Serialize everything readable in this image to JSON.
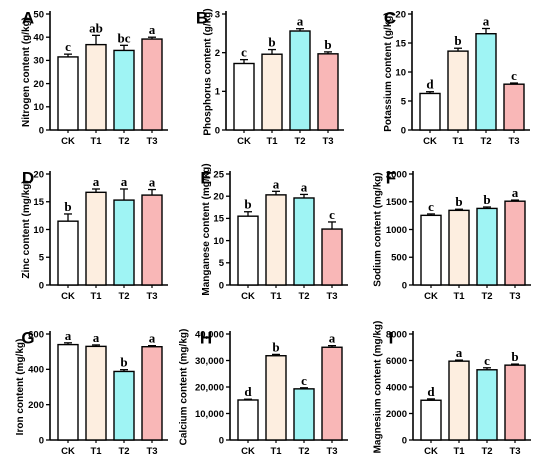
{
  "chart_data": [
    {
      "type": "bar",
      "panel": "A",
      "ylabel": "Nitrogen content (g/kg)",
      "categories": [
        "CK",
        "T1",
        "T2",
        "T3"
      ],
      "values": [
        31.5,
        36.8,
        34.3,
        39.2
      ],
      "errors": [
        1.2,
        4.0,
        2.2,
        0.8
      ],
      "significance": [
        "c",
        "ab",
        "bc",
        "a"
      ],
      "ylim": [
        0,
        50
      ],
      "yticks": [
        0,
        10,
        20,
        30,
        40,
        50
      ],
      "ytick_labels": [
        "0",
        "10",
        "20",
        "30",
        "40",
        "50"
      ]
    },
    {
      "type": "bar",
      "panel": "B",
      "ylabel": "Phosphorus content (g/kg)",
      "categories": [
        "CK",
        "T1",
        "T2",
        "T3"
      ],
      "values": [
        1.72,
        1.96,
        2.56,
        1.97
      ],
      "errors": [
        0.1,
        0.12,
        0.06,
        0.05
      ],
      "significance": [
        "c",
        "b",
        "a",
        "b"
      ],
      "ylim": [
        0,
        3
      ],
      "yticks": [
        0,
        1,
        2,
        3
      ],
      "ytick_labels": [
        "0",
        "1",
        "2",
        "3"
      ]
    },
    {
      "type": "bar",
      "panel": "C",
      "ylabel": "Potassium content (g/kg)",
      "categories": [
        "CK",
        "T1",
        "T2",
        "T3"
      ],
      "values": [
        6.3,
        13.6,
        16.6,
        7.9
      ],
      "errors": [
        0.3,
        0.5,
        0.9,
        0.2
      ],
      "significance": [
        "d",
        "b",
        "a",
        "c"
      ],
      "ylim": [
        0,
        20
      ],
      "yticks": [
        0,
        5,
        10,
        15,
        20
      ],
      "ytick_labels": [
        "0",
        "5",
        "10",
        "15",
        "20"
      ]
    },
    {
      "type": "bar",
      "panel": "D",
      "ylabel": "Zinc content (mg/kg)",
      "categories": [
        "CK",
        "T1",
        "T2",
        "T3"
      ],
      "values": [
        11.5,
        16.7,
        15.3,
        16.2
      ],
      "errors": [
        1.3,
        0.6,
        2.0,
        1.0
      ],
      "significance": [
        "b",
        "a",
        "a",
        "a"
      ],
      "ylim": [
        0,
        20
      ],
      "yticks": [
        0,
        5,
        10,
        15,
        20
      ],
      "ytick_labels": [
        "0",
        "5",
        "10",
        "15",
        "20"
      ]
    },
    {
      "type": "bar",
      "panel": "E",
      "ylabel": "Manganese content (mg/kg)",
      "categories": [
        "CK",
        "T1",
        "T2",
        "T3"
      ],
      "values": [
        15.5,
        20.3,
        19.6,
        12.6
      ],
      "errors": [
        1.0,
        0.8,
        0.8,
        1.6
      ],
      "significance": [
        "b",
        "a",
        "a",
        "c"
      ],
      "ylim": [
        0,
        25
      ],
      "yticks": [
        0,
        5,
        10,
        15,
        20,
        25
      ],
      "ytick_labels": [
        "0",
        "5",
        "10",
        "15",
        "20",
        "25"
      ]
    },
    {
      "type": "bar",
      "panel": "F",
      "ylabel": "Sodium content (mg/kg)",
      "categories": [
        "CK",
        "T1",
        "T2",
        "T3"
      ],
      "values": [
        1255,
        1345,
        1380,
        1510
      ],
      "errors": [
        25,
        20,
        25,
        20
      ],
      "significance": [
        "c",
        "b",
        "b",
        "a"
      ],
      "ylim": [
        0,
        2000
      ],
      "yticks": [
        0,
        500,
        1000,
        1500,
        2000
      ],
      "ytick_labels": [
        "0",
        "500",
        "1000",
        "1500",
        "2000"
      ]
    },
    {
      "type": "bar",
      "panel": "G",
      "ylabel": "Iron content (mg/kg)",
      "categories": [
        "CK",
        "T1",
        "T2",
        "T3"
      ],
      "values": [
        540,
        530,
        388,
        528
      ],
      "errors": [
        10,
        8,
        10,
        6
      ],
      "significance": [
        "a",
        "a",
        "b",
        "a"
      ],
      "ylim": [
        0,
        600
      ],
      "yticks": [
        0,
        200,
        400,
        600
      ],
      "ytick_labels": [
        "0",
        "200",
        "400",
        "600"
      ]
    },
    {
      "type": "bar",
      "panel": "H",
      "ylabel": "Calcium content (mg/kg)",
      "categories": [
        "CK",
        "T1",
        "T2",
        "T3"
      ],
      "values": [
        15100,
        31800,
        19300,
        35000
      ],
      "errors": [
        300,
        500,
        400,
        600
      ],
      "significance": [
        "d",
        "b",
        "c",
        "a"
      ],
      "ylim": [
        0,
        40000
      ],
      "yticks": [
        0,
        10000,
        20000,
        30000,
        40000
      ],
      "ytick_labels": [
        "0",
        "10,000",
        "20,000",
        "30,000",
        "40,000"
      ]
    },
    {
      "type": "bar",
      "panel": "I",
      "ylabel": "Magnesium content (mg/kg)",
      "categories": [
        "CK",
        "T1",
        "T2",
        "T3"
      ],
      "values": [
        3000,
        5950,
        5300,
        5650
      ],
      "errors": [
        100,
        80,
        150,
        80
      ],
      "significance": [
        "d",
        "a",
        "c",
        "b"
      ],
      "ylim": [
        0,
        8000
      ],
      "yticks": [
        0,
        2000,
        4000,
        6000,
        8000
      ],
      "ytick_labels": [
        "0",
        "2000",
        "4000",
        "6000",
        "8000"
      ]
    }
  ],
  "bar_colors": [
    "#ffffff",
    "#fdeee0",
    "#9ff4f4",
    "#f9b7b7"
  ],
  "axis_color": "#000000"
}
